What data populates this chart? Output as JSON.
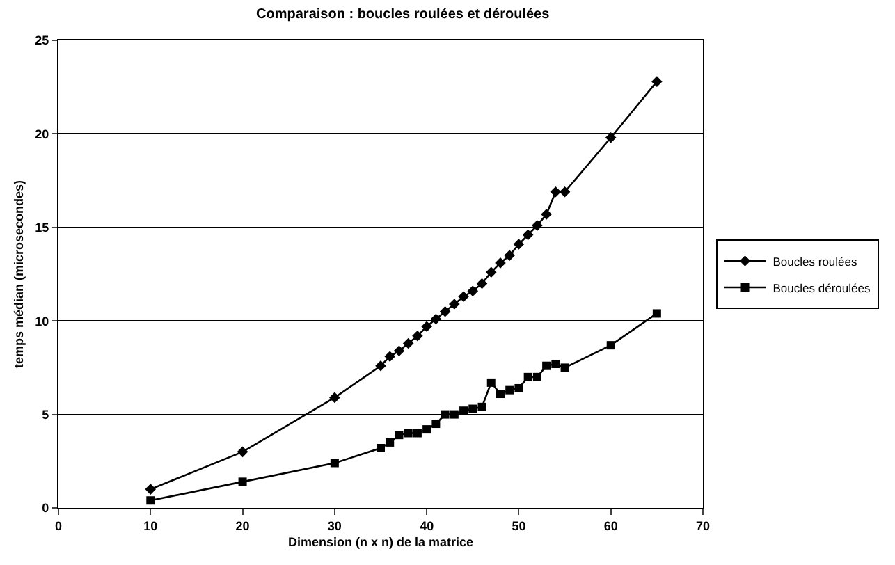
{
  "chart_data": {
    "type": "line",
    "title": "Comparaison : boucles roulées et déroulées",
    "xlabel": "Dimension (n x n) de la matrice",
    "ylabel": "temps médian (microsecondes)",
    "x": [
      10,
      20,
      30,
      35,
      36,
      37,
      38,
      39,
      40,
      41,
      42,
      43,
      44,
      45,
      46,
      47,
      48,
      49,
      50,
      51,
      52,
      53,
      54,
      55,
      60,
      65
    ],
    "series": [
      {
        "name": "Boucles roulées",
        "color": "#000000",
        "marker": "diamond",
        "values": [
          1.0,
          3.0,
          5.9,
          7.6,
          8.1,
          8.4,
          8.8,
          9.2,
          9.7,
          10.1,
          10.5,
          10.9,
          11.3,
          11.6,
          12.0,
          12.6,
          13.1,
          13.5,
          14.1,
          14.6,
          15.1,
          15.7,
          16.9,
          16.9,
          19.8,
          22.8
        ]
      },
      {
        "name": "Boucles déroulées",
        "color": "#000000",
        "marker": "square",
        "values": [
          0.4,
          1.4,
          2.4,
          3.2,
          3.5,
          3.9,
          4.0,
          4.0,
          4.2,
          4.5,
          5.0,
          5.0,
          5.2,
          5.3,
          5.4,
          6.7,
          6.1,
          6.3,
          6.4,
          7.0,
          7.0,
          7.6,
          7.7,
          7.5,
          8.7,
          10.4
        ]
      }
    ],
    "xlim": [
      0,
      70
    ],
    "xticks": [
      0,
      10,
      20,
      30,
      40,
      50,
      60,
      70
    ],
    "ylim": [
      0,
      25
    ],
    "yticks": [
      0,
      5,
      10,
      15,
      20,
      25
    ],
    "grid": "y",
    "legend": "right",
    "line_style": "solid"
  }
}
